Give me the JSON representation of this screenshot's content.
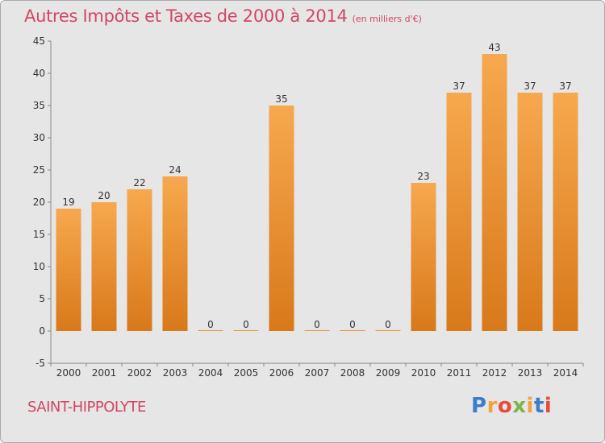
{
  "header": {
    "title": "Autres Impôts et Taxes de 2000 à 2014",
    "unit_note": "(en milliers d'€)"
  },
  "footer": {
    "town": "SAINT-HIPPOLYTE",
    "brand": [
      "P",
      "r",
      "o",
      "x",
      "i",
      "t",
      "i"
    ],
    "brand_colors": [
      "#3a7dc9",
      "#f2a33a",
      "#e64b3c",
      "#7ab648",
      "#f2a33a",
      "#3a7dc9",
      "#e64b3c"
    ]
  },
  "chart_data": {
    "type": "bar",
    "title": "Autres Impôts et Taxes de 2000 à 2014",
    "subtitle": "(en milliers d'€)",
    "xlabel": "",
    "ylabel": "",
    "categories": [
      "2000",
      "2001",
      "2002",
      "2003",
      "2004",
      "2005",
      "2006",
      "2007",
      "2008",
      "2009",
      "2010",
      "2011",
      "2012",
      "2013",
      "2014"
    ],
    "values": [
      19,
      20,
      22,
      24,
      0,
      0,
      35,
      0,
      0,
      0,
      23,
      37,
      43,
      37,
      37
    ],
    "data_labels": [
      "19",
      "20",
      "22",
      "24",
      "0",
      "0",
      "35",
      "0",
      "0",
      "0",
      "23",
      "37",
      "43",
      "37",
      "37"
    ],
    "ylim": [
      -5,
      45
    ],
    "yticks": [
      -5,
      0,
      5,
      10,
      15,
      20,
      25,
      30,
      35,
      40,
      45
    ],
    "grid": false,
    "legend": "none",
    "colors": {
      "bar_light": "#f7a84e",
      "bar_dark": "#d8791a",
      "axis": "#888888",
      "text": "#333333"
    }
  }
}
